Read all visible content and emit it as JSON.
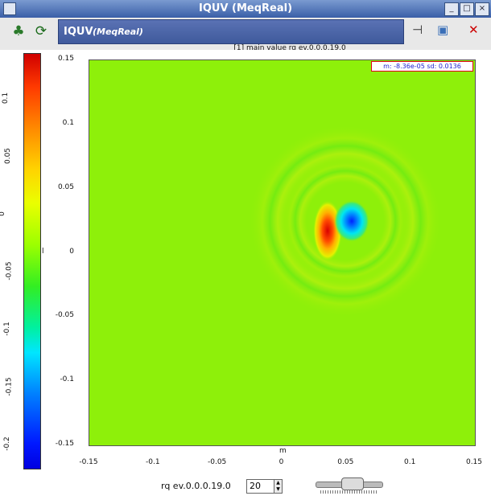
{
  "window": {
    "title": "IQUV (MeqReal)",
    "controls": [
      "minimize",
      "maximize",
      "close"
    ]
  },
  "toolbar": {
    "header_main": "IQUV",
    "header_sub": "(MeqReal)",
    "left_icons": [
      "tree-icon",
      "refresh-icon"
    ],
    "right_icons": [
      "pin-icon",
      "window-icon",
      "close-icon"
    ]
  },
  "plot": {
    "subtitle": "[1] main value  rq ev.0.0.0.19.0",
    "stats": "m: -8.36e-05 sd: 0.0136",
    "x_label": "m",
    "y_label": "l",
    "colorscale": "rainbow (red high, blue low)",
    "accent_colors": {
      "background_field": "#8ef00a",
      "stats_border": "#e0001b",
      "stats_text": "#1b1bd0"
    }
  },
  "chart_data": {
    "type": "heatmap",
    "title": "",
    "xlabel": "m",
    "ylabel": "l",
    "xlim": [
      -0.15,
      0.15
    ],
    "ylim": [
      -0.15,
      0.15
    ],
    "x_ticks": [
      "-0.15",
      "-0.1",
      "-0.05",
      "0",
      "0.05",
      "0.1",
      "0.15"
    ],
    "y_ticks": [
      "0.15",
      "0.1",
      "0.05",
      "0",
      "-0.05",
      "-0.1",
      "-0.15"
    ],
    "colorbar": {
      "range": [
        -0.22,
        0.14
      ],
      "ticks": [
        "0.1",
        "0.05",
        "0",
        "-0.05",
        "-0.1",
        "-0.15",
        "-0.2"
      ]
    },
    "features": [
      {
        "name": "positive lobe",
        "center_m": 0.035,
        "center_l": 0.01,
        "value": 0.13
      },
      {
        "name": "negative lobe",
        "center_m": 0.054,
        "center_l": 0.025,
        "value": -0.22
      },
      {
        "name": "ripple rings",
        "center_m": 0.045,
        "center_l": 0.02,
        "value": 0.02
      }
    ],
    "grid": false,
    "legend": "colorbar-left"
  },
  "controls": {
    "spin_label": "rq ev.0.0.0.19.0",
    "spin_value": "20",
    "slider_position": 0.55
  }
}
